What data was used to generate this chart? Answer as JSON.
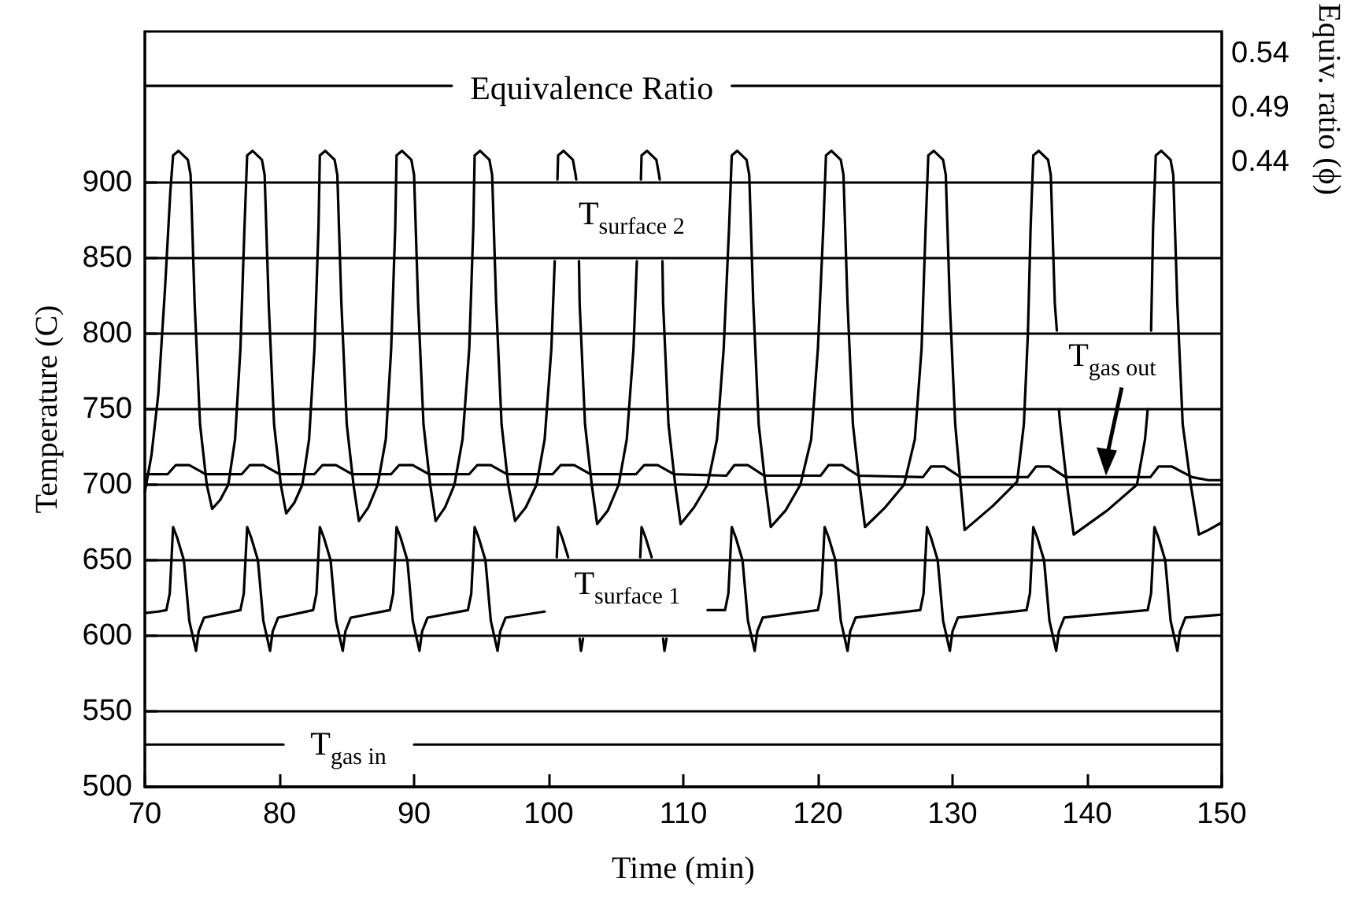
{
  "chart_data": {
    "type": "line",
    "xlabel": "Time (min)",
    "ylabel": "Temperature (C)",
    "y2label": "Equiv. ratio (ϕ)",
    "xlim": [
      70,
      150
    ],
    "xticks": [
      70,
      80,
      90,
      100,
      110,
      120,
      130,
      140,
      150
    ],
    "ylim": [
      500,
      1000
    ],
    "yticks": [
      500,
      550,
      600,
      650,
      700,
      750,
      800,
      850,
      900
    ],
    "y2lim": [
      -0.135,
      0.56
    ],
    "y2ticks": [
      0.44,
      0.49,
      0.54
    ],
    "grid": "y",
    "marker": "none",
    "line_style": "solid",
    "annotations": [
      "Equivalence Ratio",
      "T$_{surface 2}$",
      {
        "text": "T$_{gas out}$",
        "x": 141.4,
        "y": 706
      },
      "T$_{surface 1}$",
      "T$_{gas in}$"
    ],
    "series": [
      {
        "color": "#000000",
        "x": [
          70,
          70.5,
          71.0,
          71.5,
          71.9,
          72.1,
          72.5,
          73.2,
          73.4,
          73.7,
          74.1,
          74.6,
          75.0,
          75.6,
          76.2,
          76.7,
          77.1,
          77.4,
          77.6,
          78.0,
          78.7,
          78.9,
          79.2,
          79.6,
          80.1,
          80.5,
          81.1,
          81.7,
          82.2,
          82.6,
          82.9,
          83.0,
          83.4,
          84.1,
          84.3,
          84.6,
          85.0,
          85.5,
          85.9,
          86.6,
          87.3,
          87.9,
          88.3,
          88.6,
          88.7,
          89.1,
          89.8,
          90.0,
          90.3,
          90.7,
          91.2,
          91.6,
          92.3,
          93.0,
          93.6,
          94.1,
          94.4,
          94.5,
          94.9,
          95.6,
          95.8,
          96.1,
          96.5,
          97.0,
          97.5,
          98.3,
          99.1,
          99.7,
          100.2,
          100.45,
          100.55,
          100.65,
          100.7,
          101.1,
          101.8,
          102.0,
          102.05,
          102.15,
          102.25,
          102.3,
          102.7,
          103.2,
          103.6,
          104.4,
          105.2,
          105.8,
          106.3,
          106.55,
          106.7,
          106.85,
          106.9,
          107.3,
          108.0,
          108.2,
          108.25,
          108.35,
          108.45,
          108.5,
          108.9,
          109.4,
          109.8,
          110.8,
          111.8,
          112.5,
          113.0,
          113.4,
          113.6,
          114.0,
          114.7,
          114.9,
          115.2,
          115.6,
          116.1,
          116.5,
          117.6,
          118.7,
          119.5,
          120.0,
          120.4,
          120.6,
          121.0,
          121.7,
          121.9,
          122.2,
          122.6,
          123.1,
          123.5,
          125.0,
          126.4,
          127.2,
          127.7,
          128.0,
          128.2,
          128.6,
          129.3,
          129.5,
          129.8,
          130.2,
          130.6,
          130.9,
          133.0,
          134.8,
          135.3,
          135.6,
          135.8,
          136.0,
          136.4,
          137.1,
          137.3,
          137.6,
          137.75,
          137.85,
          137.9,
          138.0,
          138.5,
          139.0,
          141.5,
          143.7,
          144.3,
          144.5,
          144.6,
          144.75,
          144.9,
          145.1,
          145.5,
          146.2,
          146.4,
          146.7,
          147.1,
          147.7,
          148.3,
          149.0,
          150
        ],
        "values": [
          695,
          720,
          760,
          830,
          895,
          918,
          921,
          915,
          905,
          820,
          740,
          700,
          684,
          690,
          700,
          730,
          790,
          870,
          918,
          921,
          915,
          905,
          820,
          740,
          700,
          681,
          688,
          700,
          730,
          790,
          870,
          918,
          921,
          915,
          905,
          820,
          740,
          700,
          676,
          685,
          700,
          730,
          790,
          870,
          918,
          921,
          915,
          905,
          820,
          740,
          700,
          676,
          685,
          700,
          730,
          790,
          870,
          918,
          921,
          915,
          905,
          820,
          740,
          700,
          676,
          685,
          700,
          730,
          790,
          848,
          null,
          902,
          918,
          921,
          915,
          905,
          902,
          null,
          848,
          820,
          740,
          700,
          674,
          683,
          700,
          730,
          790,
          848,
          null,
          902,
          918,
          921,
          915,
          905,
          902,
          null,
          848,
          820,
          740,
          700,
          674,
          685,
          700,
          730,
          790,
          870,
          918,
          921,
          915,
          905,
          820,
          740,
          700,
          672,
          683,
          700,
          730,
          790,
          870,
          918,
          921,
          915,
          905,
          820,
          740,
          700,
          672,
          685,
          700,
          730,
          790,
          870,
          918,
          921,
          915,
          905,
          820,
          740,
          700,
          670,
          686,
          702,
          740,
          800,
          870,
          918,
          921,
          915,
          905,
          820,
          802,
          null,
          750,
          740,
          700,
          667,
          683,
          700,
          730,
          750,
          null,
          802,
          870,
          918,
          921,
          915,
          905,
          820,
          740,
          700,
          667,
          670,
          675
        ]
      },
      {
        "color": "#000000",
        "x": [
          70,
          71.7,
          72.3,
          73.3,
          74.5,
          77.2,
          77.8,
          78.8,
          80.0,
          82.6,
          83.2,
          84.2,
          85.4,
          88.3,
          88.9,
          89.9,
          91.1,
          94.1,
          94.7,
          95.7,
          96.9,
          100.3,
          100.9,
          101.9,
          103.1,
          106.5,
          107.1,
          108.1,
          109.3,
          113.2,
          113.8,
          114.8,
          116.0,
          120.2,
          120.8,
          121.8,
          123.0,
          127.8,
          128.4,
          129.4,
          130.6,
          135.6,
          136.2,
          137.2,
          138.4,
          144.7,
          145.3,
          146.3,
          147.8,
          149,
          150
        ],
        "values": [
          707,
          707,
          713,
          713,
          707,
          707,
          713,
          713,
          707,
          707,
          713,
          713,
          707,
          707,
          713,
          713,
          707,
          707,
          713,
          713,
          707,
          707,
          713,
          713,
          707,
          707,
          713,
          713,
          707,
          706,
          713,
          713,
          706,
          706,
          713,
          713,
          706,
          705,
          712,
          712,
          705,
          705,
          712,
          712,
          705,
          705,
          712,
          712,
          705,
          703,
          703
        ]
      },
      {
        "color": "#000000",
        "x": [
          70,
          71,
          71.6,
          71.85,
          72.1,
          72.4,
          72.9,
          73.3,
          73.8,
          74.0,
          74.4,
          77.1,
          77.35,
          77.6,
          77.9,
          78.4,
          78.8,
          79.3,
          79.5,
          79.9,
          82.5,
          82.75,
          83.0,
          83.3,
          83.8,
          84.2,
          84.7,
          84.9,
          85.3,
          88.2,
          88.45,
          88.7,
          89.0,
          89.5,
          89.9,
          90.4,
          90.6,
          91.0,
          94.0,
          94.25,
          94.5,
          94.8,
          95.3,
          95.7,
          96.2,
          96.4,
          96.8,
          99.7,
          100.0,
          100.6,
          100.7,
          101.0,
          101.45,
          101.8,
          102.3,
          102.4,
          102.55,
          102.8,
          106.4,
          106.8,
          106.9,
          107.2,
          107.65,
          108.0,
          108.5,
          108.6,
          108.75,
          110.0,
          111.8,
          113.1,
          113.35,
          113.6,
          113.9,
          114.4,
          114.8,
          115.3,
          115.5,
          115.9,
          120.0,
          120.25,
          120.5,
          120.8,
          121.3,
          121.7,
          122.2,
          122.4,
          122.8,
          127.6,
          127.85,
          128.1,
          128.4,
          128.9,
          129.3,
          129.8,
          130.0,
          130.4,
          135.5,
          135.75,
          136.0,
          136.3,
          136.8,
          137.2,
          137.7,
          137.9,
          138.3,
          144.5,
          144.75,
          145.0,
          145.3,
          145.8,
          146.2,
          146.7,
          146.9,
          147.3,
          150
        ],
        "values": [
          615,
          616,
          617,
          628,
          672,
          665,
          650,
          610,
          590,
          603,
          612,
          617,
          628,
          672,
          665,
          650,
          610,
          590,
          603,
          612,
          617,
          628,
          672,
          665,
          650,
          610,
          590,
          603,
          612,
          617,
          628,
          672,
          665,
          650,
          610,
          590,
          603,
          612,
          617,
          628,
          672,
          665,
          650,
          610,
          590,
          603,
          612,
          616,
          null,
          652,
          672,
          665,
          652,
          null,
          598,
          590,
          598,
          null,
          null,
          652,
          672,
          665,
          652,
          null,
          598,
          590,
          598,
          null,
          617,
          617,
          628,
          672,
          665,
          650,
          610,
          590,
          603,
          612,
          617,
          628,
          672,
          665,
          650,
          610,
          590,
          603,
          612,
          617,
          628,
          672,
          665,
          650,
          610,
          590,
          603,
          612,
          617,
          628,
          672,
          665,
          650,
          610,
          590,
          603,
          612,
          617,
          628,
          672,
          665,
          650,
          610,
          590,
          603,
          612,
          614
        ]
      },
      {
        "color": "#000000",
        "x": [
          70,
          80.3,
          85,
          90.0,
          110,
          130,
          150
        ],
        "values": [
          528,
          528,
          null,
          528,
          528,
          528,
          528
        ]
      },
      {
        "color": "#000000",
        "axis": "y2",
        "x": [
          70,
          92.8,
          100,
          113.6,
          150
        ],
        "values": [
          0.51,
          0.51,
          null,
          0.51,
          0.51
        ]
      }
    ]
  }
}
